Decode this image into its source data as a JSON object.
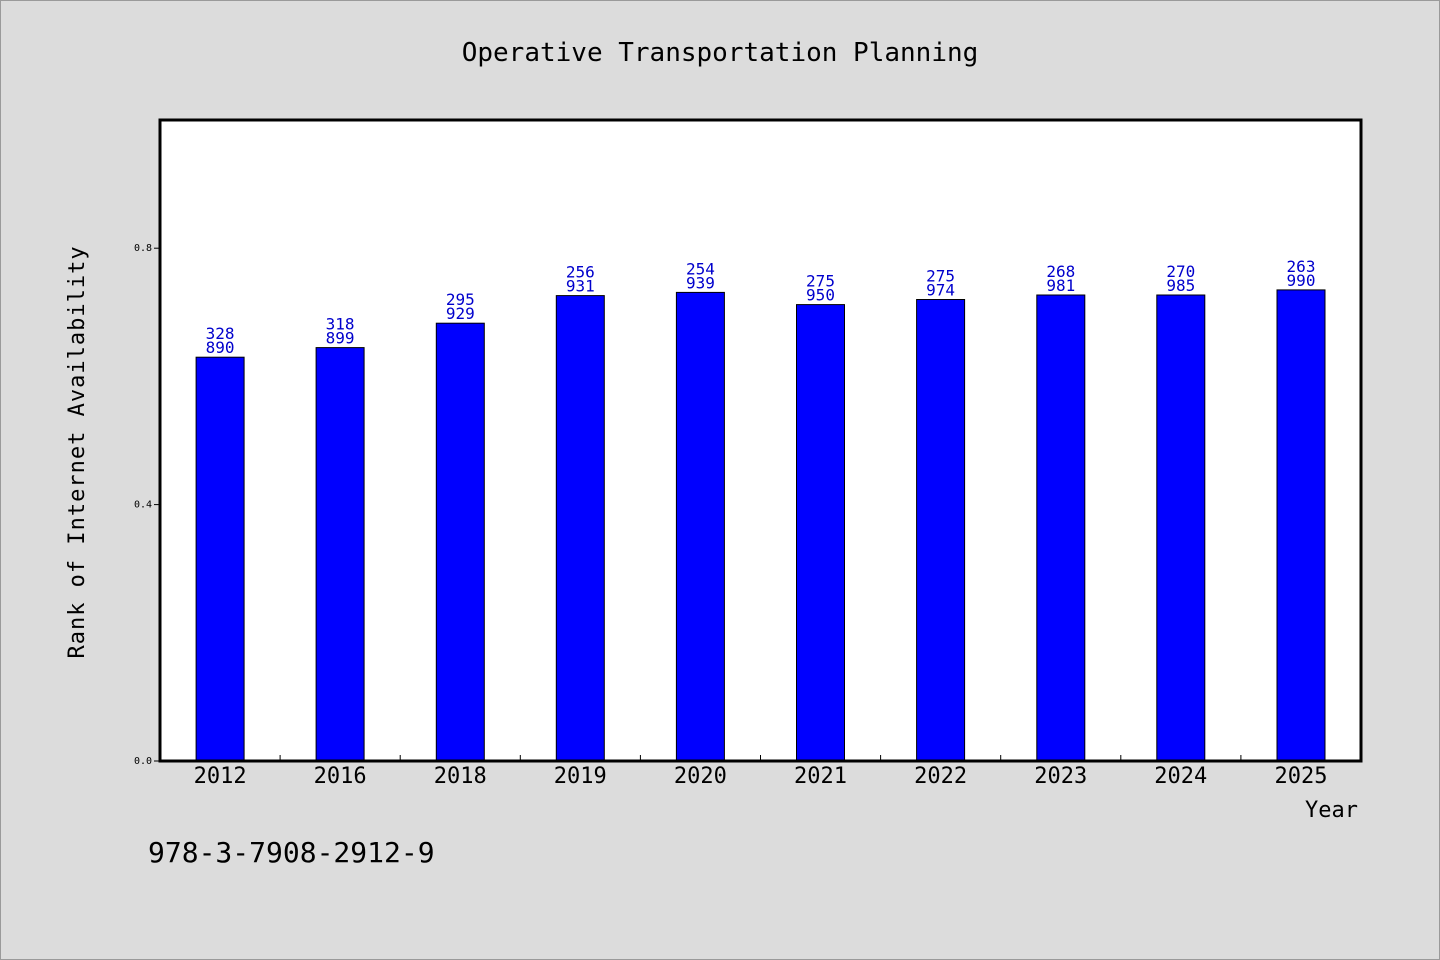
{
  "chart_data": {
    "type": "bar",
    "title": "Operative Transportation Planning",
    "xlabel": "Year",
    "ylabel": "Rank of Internet Availability",
    "categories": [
      "2012",
      "2016",
      "2018",
      "2019",
      "2020",
      "2021",
      "2022",
      "2023",
      "2024",
      "2025"
    ],
    "values": [
      0.63,
      0.645,
      0.683,
      0.726,
      0.731,
      0.712,
      0.72,
      0.727,
      0.727,
      0.735
    ],
    "data_labels": [
      [
        "328",
        "890"
      ],
      [
        "318",
        "899"
      ],
      [
        "295",
        "929"
      ],
      [
        "256",
        "931"
      ],
      [
        "254",
        "939"
      ],
      [
        "275",
        "950"
      ],
      [
        "275",
        "974"
      ],
      [
        "268",
        "981"
      ],
      [
        "270",
        "985"
      ],
      [
        "263",
        "990"
      ]
    ],
    "ylim": [
      0,
      1.0
    ],
    "yticks": [
      "0.0",
      "0.4",
      "0.8"
    ],
    "grid": false,
    "bar_color": "#0000ff",
    "label_color": "#0000cc",
    "background": "#dcdcdc",
    "plot_background": "#ffffff"
  },
  "footer": {
    "isbn": "978-3-7908-2912-9"
  }
}
